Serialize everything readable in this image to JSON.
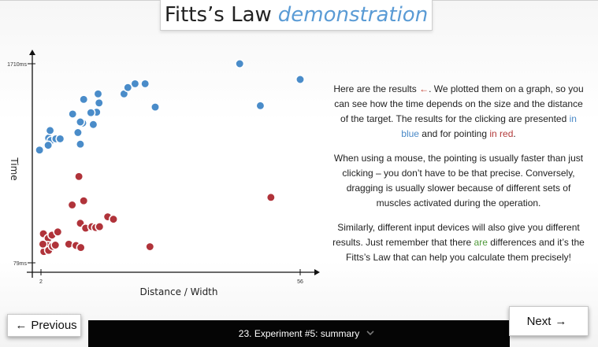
{
  "header": {
    "title_plain": "Fitts’s Law",
    "title_accent": "demonstration"
  },
  "chart_data": {
    "type": "scatter",
    "xlabel": "Distance / Width",
    "ylabel": "Time",
    "x_ticks": [
      "2",
      "56"
    ],
    "y_ticks": [
      "1710ms",
      "79ms"
    ],
    "xlim": [
      2,
      56
    ],
    "ylim": [
      79,
      1710
    ],
    "series": [
      {
        "name": "clicking",
        "color": "#4a8cc9",
        "points": [
          [
            1.7,
            1003
          ],
          [
            3.6,
            1101
          ],
          [
            3.9,
            1163
          ],
          [
            4.1,
            1081
          ],
          [
            3.5,
            1042
          ],
          [
            5.1,
            1095
          ],
          [
            6,
            1095
          ],
          [
            10.9,
            1418
          ],
          [
            8.6,
            1298
          ],
          [
            10.7,
            1224
          ],
          [
            10.2,
            1233
          ],
          [
            9.7,
            1146
          ],
          [
            12.9,
            1212
          ],
          [
            13.6,
            1313
          ],
          [
            14.1,
            1389
          ],
          [
            13.9,
            1463
          ],
          [
            10.2,
            1051
          ],
          [
            12.4,
            1309
          ],
          [
            19.3,
            1463
          ],
          [
            21.6,
            1546
          ],
          [
            23.7,
            1546
          ],
          [
            20.1,
            1515
          ],
          [
            25.8,
            1355
          ],
          [
            43.4,
            1710
          ],
          [
            47.7,
            1366
          ],
          [
            56,
            1581
          ]
        ]
      },
      {
        "name": "pointing",
        "color": "#b0333a",
        "points": [
          [
            2.5,
            317
          ],
          [
            3.5,
            279
          ],
          [
            4.3,
            306
          ],
          [
            5.5,
            332
          ],
          [
            3.4,
            220
          ],
          [
            2.6,
            171
          ],
          [
            3.6,
            181
          ],
          [
            2.4,
            232
          ],
          [
            4.4,
            214
          ],
          [
            5,
            224
          ],
          [
            7.8,
            232
          ],
          [
            9.3,
            221
          ],
          [
            10.3,
            204
          ],
          [
            10.2,
            403
          ],
          [
            11.3,
            363
          ],
          [
            12.6,
            375
          ],
          [
            13.4,
            368
          ],
          [
            14.2,
            375
          ],
          [
            15.9,
            456
          ],
          [
            17.1,
            436
          ],
          [
            8.5,
            553
          ],
          [
            10.9,
            587
          ],
          [
            24.7,
            211
          ],
          [
            49.9,
            615
          ],
          [
            9.9,
            786
          ]
        ]
      }
    ]
  },
  "panel": {
    "p1_a": "Here are the results ",
    "p1_arrow": "←",
    "p1_b": ". We plotted them on a graph, so you can see how the time depends on the size and the distance of the target. The results for the clicking are presented ",
    "p1_blue": "in blue",
    "p1_c": " and for pointing ",
    "p1_red": "in red",
    "p1_d": ".",
    "p2": "When using a mouse, the pointing is usually faster than just clicking – you don’t have to be that precise. Conversely, dragging is usually slower because of different sets of muscles activated during the operation.",
    "p3_a": "Similarly, different input devices will also give you different results. Just remember that there ",
    "p3_green": "are",
    "p3_b": " differences and it’s the Fitts’s Law that can help you calculate them precisely!"
  },
  "nav": {
    "prev_arrow": "←",
    "prev_label": "Previous",
    "next_label": "Next",
    "next_arrow": "→",
    "step_label": "23. Experiment #5: summary"
  },
  "icons": {
    "dropdown": "chevron-down-icon"
  }
}
